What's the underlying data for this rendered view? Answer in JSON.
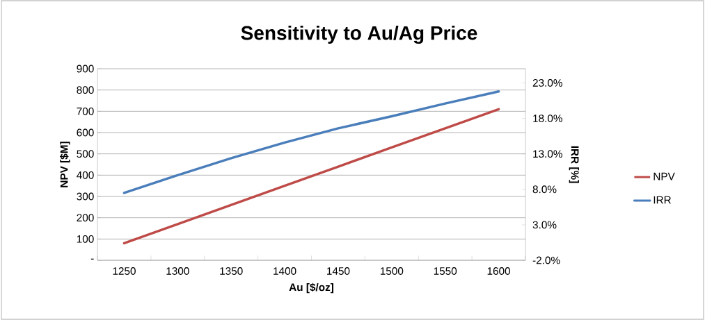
{
  "chart_data": {
    "type": "line",
    "title": "Sensitivity to Au/Ag Price",
    "xlabel": "Au [$/oz]",
    "ylabel": "NPV [$M]",
    "y2label": "IRR [%]",
    "categories": [
      "1250",
      "1300",
      "1350",
      "1400",
      "1450",
      "1500",
      "1550",
      "1600"
    ],
    "series": [
      {
        "name": "NPV",
        "color": "#be4b48",
        "values": [
          80,
          170,
          260,
          350,
          440,
          530,
          620,
          710
        ]
      },
      {
        "name": "IRR",
        "color": "#4a7ebb",
        "axis": "y2",
        "values": [
          7.5,
          10.0,
          12.4,
          14.6,
          16.6,
          18.3,
          20.1,
          21.8
        ]
      }
    ],
    "ylim": [
      0,
      900
    ],
    "yticks": [
      {
        "value": 0,
        "label": "-"
      },
      100,
      200,
      300,
      400,
      500,
      600,
      700,
      800,
      900
    ],
    "y2lim": [
      -2,
      25
    ],
    "y2ticks": [
      {
        "value": -2,
        "label": "-2.0%"
      },
      {
        "value": 3,
        "label": "3.0%"
      },
      {
        "value": 8,
        "label": "8.0%"
      },
      {
        "value": 13,
        "label": "13.0%"
      },
      {
        "value": 18,
        "label": "18.0%"
      },
      {
        "value": 23,
        "label": "23.0%"
      }
    ],
    "grid": "y",
    "legend": "right",
    "marker": "none",
    "line_style": "solid"
  }
}
